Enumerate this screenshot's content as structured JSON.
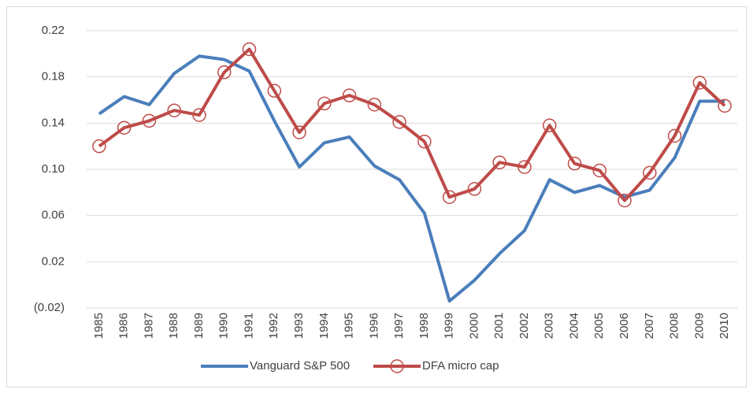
{
  "chart_data": {
    "type": "line",
    "categories": [
      "1985",
      "1986",
      "1987",
      "1988",
      "1989",
      "1990",
      "1991",
      "1992",
      "1993",
      "1994",
      "1995",
      "1996",
      "1997",
      "1998",
      "1999",
      "2000",
      "2001",
      "2002",
      "2003",
      "2004",
      "2005",
      "2006",
      "2007",
      "2008",
      "2009",
      "2010"
    ],
    "series": [
      {
        "name": "Vanguard S&P 500",
        "color": "#4a7ebb",
        "values": [
          0.148,
          0.163,
          0.156,
          0.183,
          0.198,
          0.195,
          0.185,
          0.142,
          0.102,
          0.123,
          0.128,
          0.103,
          0.091,
          0.062,
          -0.014,
          0.004,
          0.027,
          0.047,
          0.091,
          0.08,
          0.086,
          0.076,
          0.082,
          0.11,
          0.159,
          0.159
        ]
      },
      {
        "name": "DFA micro cap",
        "color": "#be4b48",
        "marker": "circle",
        "values": [
          0.12,
          0.136,
          0.142,
          0.151,
          0.147,
          0.184,
          0.204,
          0.168,
          0.132,
          0.157,
          0.164,
          0.156,
          0.141,
          0.124,
          0.076,
          0.083,
          0.106,
          0.102,
          0.138,
          0.105,
          0.099,
          0.073,
          0.097,
          0.129,
          0.175,
          0.155
        ]
      }
    ],
    "ylim": [
      -0.02,
      0.22
    ],
    "yticks": [
      {
        "value": -0.02,
        "label": "(0.02)"
      },
      0.02,
      0.06,
      {
        "value": 0.1,
        "label": "0.10"
      },
      0.14,
      0.18,
      0.22
    ],
    "grid": true,
    "legend": "bottom"
  }
}
